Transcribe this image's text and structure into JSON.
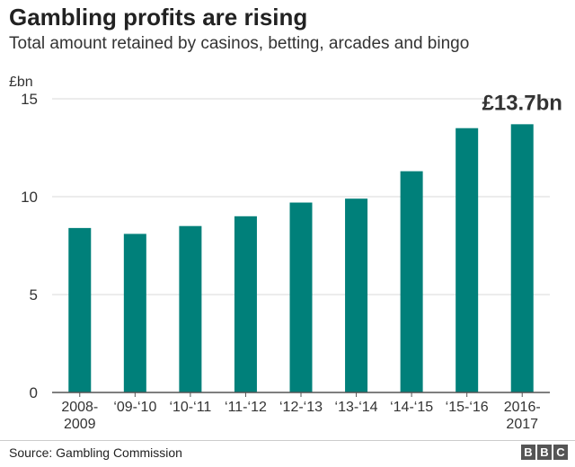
{
  "title": "Gambling profits are rising",
  "subtitle": "Total amount retained by casinos, betting, arcades and bingo",
  "source": "Source: Gambling Commission",
  "logo": [
    "B",
    "B",
    "C"
  ],
  "colors": {
    "bar": "#00807a",
    "grid": "#d9d9d9",
    "axis": "#555555"
  },
  "chart_data": {
    "type": "bar",
    "unit_label": "£bn",
    "ylim": [
      0,
      15
    ],
    "yticks": [
      0,
      5,
      10,
      15
    ],
    "grid": true,
    "categories": [
      [
        "2008-",
        "2009"
      ],
      [
        "‘09-‘10"
      ],
      [
        "‘10-‘11"
      ],
      [
        "‘11-‘12"
      ],
      [
        "‘12-‘13"
      ],
      [
        "‘13-‘14"
      ],
      [
        "‘14-‘15"
      ],
      [
        "‘15-‘16"
      ],
      [
        "2016-",
        "2017"
      ]
    ],
    "values": [
      8.4,
      8.1,
      8.5,
      9.0,
      9.7,
      9.9,
      11.3,
      13.5,
      13.7
    ],
    "annotation": {
      "text": "£13.7bn",
      "index": 8
    }
  }
}
